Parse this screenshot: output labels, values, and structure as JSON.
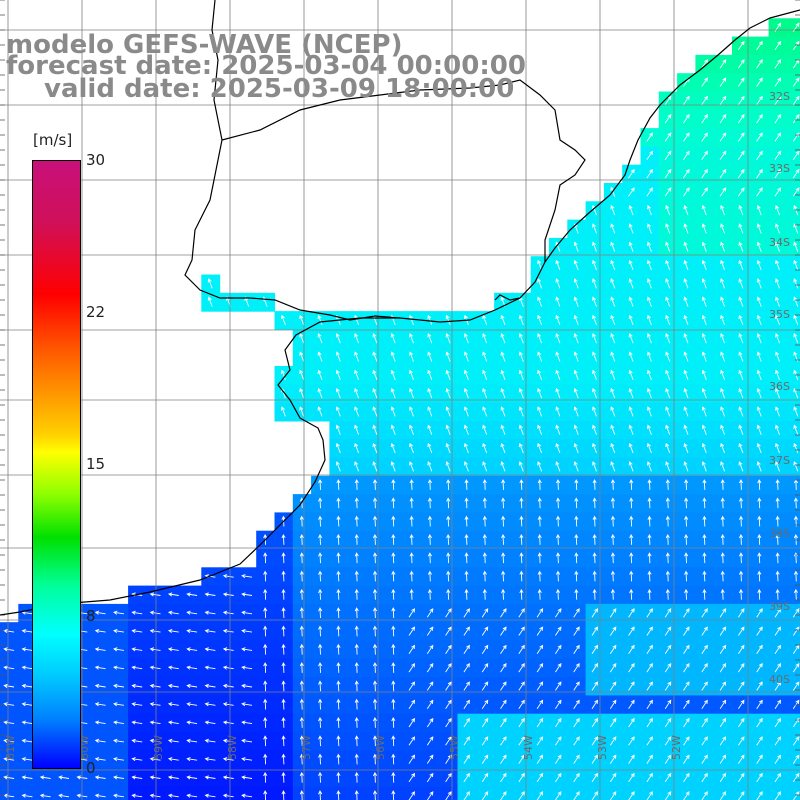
{
  "title": {
    "line1": "modelo GEFS-WAVE (NCEP)",
    "line2": "forecast date: 2025-03-04 00:00:00",
    "line3": "valid date: 2025-03-09 18:00:00"
  },
  "colorbar": {
    "unit": "[m/s]",
    "ticks": [
      "30",
      "22",
      "15",
      "8",
      "0"
    ],
    "min": 0,
    "max": 30
  },
  "axes": {
    "lat_labels": [
      "32S",
      "33S",
      "34S",
      "35S",
      "36S",
      "37S",
      "38S",
      "39S",
      "40S"
    ],
    "lon_labels": [
      "61W",
      "60W",
      "59W",
      "58W",
      "57W",
      "56W",
      "55W",
      "54W",
      "53W",
      "52W"
    ]
  },
  "colors": {
    "land": "#ffffff",
    "coast": "#000000",
    "grid": "#808080",
    "arrow": "#ffffff",
    "title": "#8a8a8a"
  },
  "wind_field": {
    "north_east": "green (~13 m/s) toward northeast",
    "central": "cyan (~10 m/s) toward north-northwest",
    "south_west": "blue (~3-5 m/s)"
  }
}
